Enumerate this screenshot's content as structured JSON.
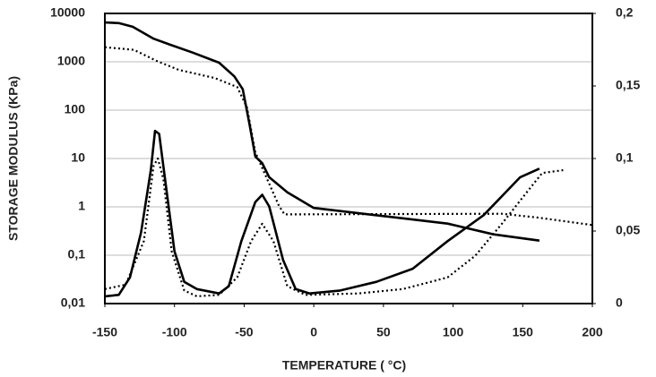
{
  "chart_data": {
    "type": "line",
    "x_label": "TEMPERATURE ( °C)",
    "y_label": "STORAGE MODULUS (KPa)",
    "xlim": [
      -150,
      200
    ],
    "xticks": [
      -150,
      -100,
      -50,
      0,
      50,
      100,
      150,
      200
    ],
    "ylim": [
      0.01,
      10000
    ],
    "y_scale": "log",
    "yticks": [
      {
        "value": 0.01,
        "label": "0,01"
      },
      {
        "value": 0.1,
        "label": "0,1"
      },
      1,
      10,
      100,
      1000,
      10000
    ],
    "y2lim": [
      0,
      0.2
    ],
    "y2ticks": [
      0,
      {
        "value": 0.05,
        "label": "0,05"
      },
      {
        "value": 0.1,
        "label": "0,1"
      },
      {
        "value": 0.15,
        "label": "0,15"
      },
      {
        "value": 0.2,
        "label": "0,2"
      }
    ],
    "grid": true,
    "series": [
      {
        "color": "#000000",
        "line_style": "solid",
        "axis": "y",
        "x": [
          -150,
          -140,
          -130,
          -115,
          -103,
          -87,
          -68,
          -57,
          -51,
          -46,
          -42,
          -37,
          -32,
          -19,
          0,
          32,
          64,
          96,
          129,
          162
        ],
        "values": [
          6500,
          6300,
          5300,
          3000,
          2250,
          1550,
          960,
          500,
          270,
          49,
          11,
          8,
          4.1,
          2,
          0.95,
          0.74,
          0.58,
          0.45,
          0.27,
          0.2
        ]
      },
      {
        "color": "#000000",
        "line_style": "dotted",
        "axis": "y",
        "x": [
          -150,
          -129,
          -113,
          -97,
          -71,
          -55,
          -48,
          -42,
          -32,
          -25,
          -21,
          135,
          161,
          200
        ],
        "values": [
          2000,
          1760,
          1050,
          680,
          460,
          300,
          115,
          13.5,
          3,
          1.05,
          0.7,
          0.72,
          0.6,
          0.42
        ]
      },
      {
        "color": "#000000",
        "line_style": "solid",
        "axis": "y2",
        "x": [
          -150,
          -140,
          -132,
          -124,
          -117,
          -114,
          -111,
          -106,
          -100,
          -93,
          -84,
          -68,
          -61,
          -52,
          -42,
          -37,
          -32,
          -22,
          -13,
          -3,
          19,
          45,
          71,
          96,
          122,
          148,
          162
        ],
        "values": [
          0.005,
          0.006,
          0.018,
          0.049,
          0.092,
          0.119,
          0.117,
          0.08,
          0.036,
          0.015,
          0.01,
          0.007,
          0.012,
          0.043,
          0.07,
          0.075,
          0.067,
          0.03,
          0.01,
          0.007,
          0.009,
          0.015,
          0.024,
          0.043,
          0.061,
          0.087,
          0.093
        ]
      },
      {
        "color": "#000000",
        "line_style": "dotted",
        "axis": "y2",
        "x": [
          -150,
          -135,
          -122,
          -115,
          -112,
          -108,
          -102,
          -93,
          -84,
          -68,
          -55,
          -45,
          -37,
          -29,
          -19,
          -6,
          32,
          64,
          96,
          116,
          135,
          154,
          164,
          179
        ],
        "values": [
          0.01,
          0.013,
          0.043,
          0.095,
          0.1,
          0.086,
          0.036,
          0.009,
          0.005,
          0.006,
          0.018,
          0.043,
          0.055,
          0.043,
          0.012,
          0.006,
          0.007,
          0.01,
          0.018,
          0.033,
          0.055,
          0.078,
          0.09,
          0.092
        ]
      }
    ]
  }
}
